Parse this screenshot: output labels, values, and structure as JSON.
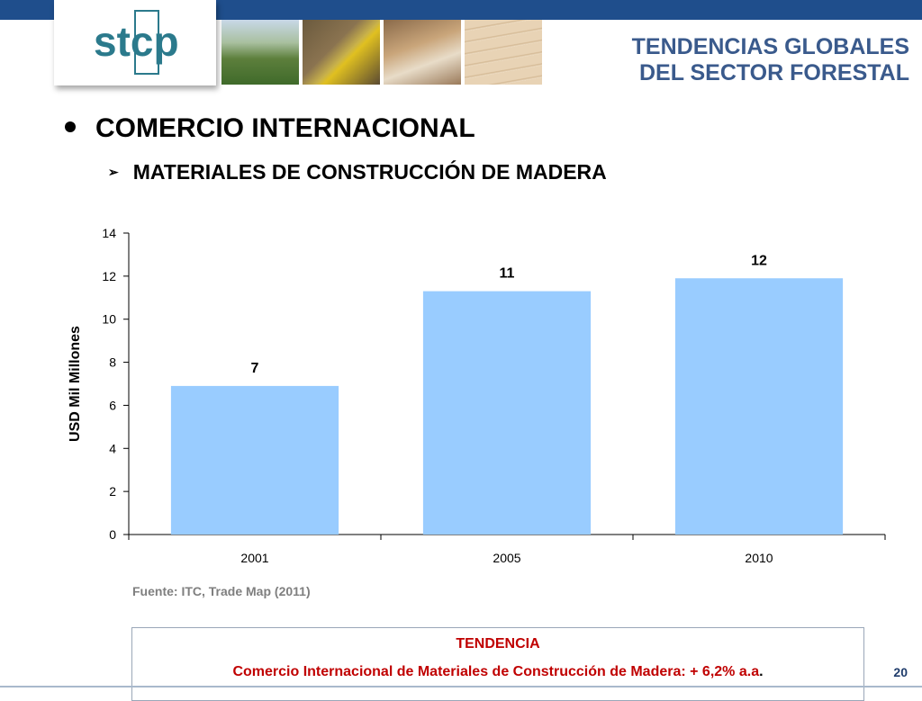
{
  "header": {
    "logo_text": "stcp",
    "title_line1": "TENDENCIAS GLOBALES",
    "title_line2": "DEL SECTOR FORESTAL",
    "photos": [
      "forest-photo-icon",
      "harvester-photo-icon",
      "sawmill-photo-icon",
      "wood-panels-photo-icon"
    ]
  },
  "headings": {
    "main": "COMERCIO INTERNACIONAL",
    "sub": "MATERIALES DE CONSTRUCCIÓN DE MADERA"
  },
  "chart_data": {
    "type": "bar",
    "categories": [
      "2001",
      "2005",
      "2010"
    ],
    "values": [
      6.9,
      11.3,
      11.9
    ],
    "data_labels": [
      "7",
      "11",
      "12"
    ],
    "ylabel": "USD Mil Millones",
    "xlabel": "",
    "ylim": [
      0,
      14
    ],
    "yticks": [
      "0",
      "2",
      "4",
      "6",
      "8",
      "10",
      "12",
      "14"
    ],
    "grid": false,
    "bar_color": "#99ccff"
  },
  "source": "Fuente: ITC, Trade Map (2011)",
  "trend": {
    "title": "TENDENCIA",
    "text": "Comercio Internacional de Materiales de Construcción de Madera: + 6,2% a.a",
    "dot": "."
  },
  "page_number": "20",
  "colors": {
    "accent": "#1f4e8c",
    "trend_red": "#c00000",
    "title_blue": "#3a5a8c"
  }
}
